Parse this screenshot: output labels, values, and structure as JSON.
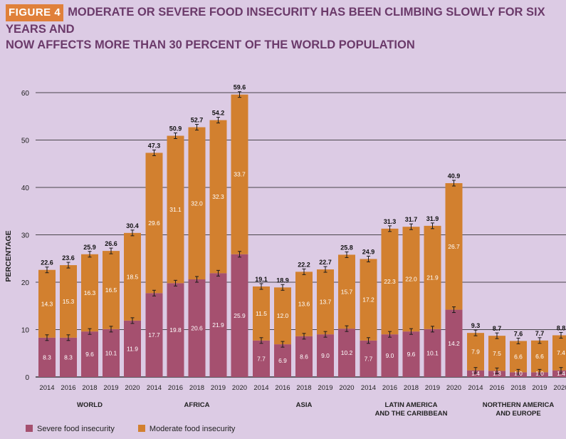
{
  "header": {
    "figure_label": "FIGURE 4",
    "title_line1": "MODERATE OR SEVERE FOOD INSECURITY HAS BEEN CLIMBING SLOWLY FOR SIX YEARS AND",
    "title_line2": "NOW AFFECTS MORE THAN 30 PERCENT OF THE WORLD POPULATION"
  },
  "colors": {
    "severe": "#a5506f",
    "moderate": "#d2802f",
    "grid": "#1a1a1a",
    "errorbar": "#1a1a1a"
  },
  "legend": {
    "severe_label": "Severe food insecurity",
    "moderate_label": "Moderate food insecurity"
  },
  "chart_data": {
    "type": "bar",
    "stacked": true,
    "ylabel": "PERCENTAGE",
    "ylim": [
      0,
      60
    ],
    "yticks": [
      0,
      10,
      20,
      30,
      40,
      50,
      60
    ],
    "grid": true,
    "groups": [
      {
        "label_lines": [
          "WORLD"
        ],
        "years": [
          "2014",
          "2016",
          "2018",
          "2019",
          "2020"
        ],
        "severe": [
          8.3,
          8.3,
          9.6,
          10.1,
          11.9
        ],
        "moderate": [
          14.3,
          15.3,
          16.3,
          16.5,
          18.5
        ],
        "total": [
          22.6,
          23.6,
          25.9,
          26.6,
          30.4
        ],
        "severe_labels": [
          "8.3",
          "8.3",
          "9.6",
          "10.1",
          "11.9"
        ],
        "moderate_labels": [
          "14.3",
          "15.3",
          "16.3",
          "16.5",
          "18.5"
        ],
        "total_labels": [
          "22.6",
          "23.6",
          "25.9",
          "26.6",
          "30.4"
        ]
      },
      {
        "label_lines": [
          "AFRICA"
        ],
        "years": [
          "2014",
          "2016",
          "2018",
          "2019",
          "2020"
        ],
        "severe": [
          17.7,
          19.8,
          20.6,
          21.9,
          25.9
        ],
        "moderate": [
          29.6,
          31.1,
          32.0,
          32.3,
          33.7
        ],
        "total": [
          47.3,
          50.9,
          52.7,
          54.2,
          59.6
        ],
        "severe_labels": [
          "17.7",
          "19.8",
          "20.6",
          "21.9",
          "25.9"
        ],
        "moderate_labels": [
          "29.6",
          "31.1",
          "32.0",
          "32.3",
          "33.7"
        ],
        "total_labels": [
          "47.3",
          "50.9",
          "52.7",
          "54.2",
          "59.6"
        ]
      },
      {
        "label_lines": [
          "ASIA"
        ],
        "years": [
          "2014",
          "2016",
          "2018",
          "2019",
          "2020"
        ],
        "severe": [
          7.7,
          6.9,
          8.6,
          9.0,
          10.2
        ],
        "moderate": [
          11.5,
          12.0,
          13.6,
          13.7,
          15.7
        ],
        "total": [
          19.1,
          18.9,
          22.2,
          22.7,
          25.8
        ],
        "severe_labels": [
          "7.7",
          "6.9",
          "8.6",
          "9.0",
          "10.2"
        ],
        "moderate_labels": [
          "11.5",
          "12.0",
          "13.6",
          "13.7",
          "15.7"
        ],
        "total_labels": [
          "19.1",
          "18.9",
          "22.2",
          "22.7",
          "25.8"
        ]
      },
      {
        "label_lines": [
          "LATIN AMERICA",
          "AND THE CARIBBEAN"
        ],
        "years": [
          "2014",
          "2016",
          "2018",
          "2019",
          "2020"
        ],
        "severe": [
          7.7,
          9.0,
          9.6,
          10.1,
          14.2
        ],
        "moderate": [
          17.2,
          22.3,
          22.0,
          21.9,
          26.7
        ],
        "total": [
          24.9,
          31.3,
          31.7,
          31.9,
          40.9
        ],
        "severe_labels": [
          "7.7",
          "9.0",
          "9.6",
          "10.1",
          "14.2"
        ],
        "moderate_labels": [
          "17.2",
          "22.3",
          "22.0",
          "21.9",
          "26.7"
        ],
        "total_labels": [
          "24.9",
          "31.3",
          "31.7",
          "31.9",
          "40.9"
        ]
      },
      {
        "label_lines": [
          "NORTHERN AMERICA",
          "AND EUROPE"
        ],
        "years": [
          "2014",
          "2016",
          "2018",
          "2019",
          "2020"
        ],
        "severe": [
          1.4,
          1.3,
          1.0,
          1.0,
          1.4
        ],
        "moderate": [
          7.9,
          7.5,
          6.6,
          6.6,
          7.4
        ],
        "total": [
          9.3,
          8.7,
          7.6,
          7.7,
          8.8
        ],
        "severe_labels": [
          "1.4",
          "1.3",
          "1.0",
          "1.0",
          "1.4"
        ],
        "moderate_labels": [
          "7.9",
          "7.5",
          "6.6",
          "6.6",
          "7.4"
        ],
        "total_labels": [
          "9.3",
          "8.7",
          "7.6",
          "7.7",
          "8.8"
        ]
      }
    ],
    "series": [
      {
        "name": "Severe food insecurity"
      },
      {
        "name": "Moderate food insecurity"
      }
    ]
  }
}
